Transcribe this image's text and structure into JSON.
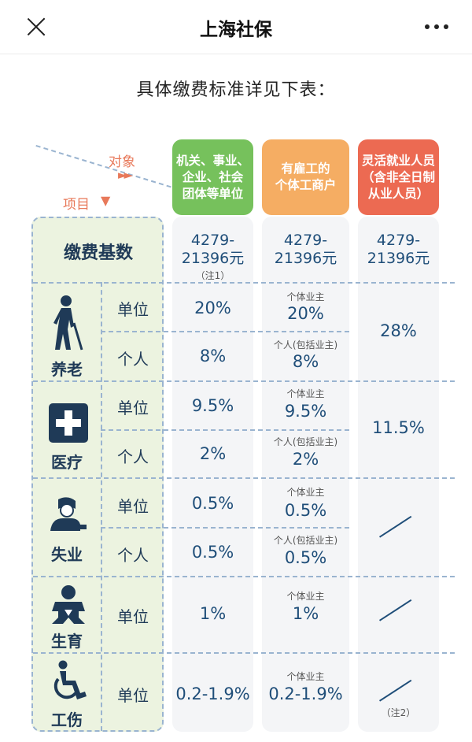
{
  "topbar": {
    "title": "上海社保"
  },
  "intro": "具体缴费标准详见下表：",
  "corner": {
    "object_label": "对象",
    "object_arrow": "►►",
    "item_label": "项目",
    "item_arrow": "▼"
  },
  "columns": [
    {
      "header": "机关、事业、\n企业、社会\n团体等单位",
      "color": "#76c15c"
    },
    {
      "header": "有雇工的\n个体工商户",
      "color": "#f5ad63"
    },
    {
      "header": "灵活就业人员\n（含非全日制\n从业人员）",
      "color": "#ec6a52"
    }
  ],
  "base": {
    "label": "缴费基数",
    "c1": "4279-\n21396元",
    "c1_note": "（注1）",
    "c2": "4279-\n21396元",
    "c3": "4279-\n21396元"
  },
  "sub_unit": "单位",
  "sub_personal": "个人",
  "note_owner": "个体业主",
  "note_personal_owner": "个人(包括业主)",
  "pension": {
    "label": "养老",
    "unit_c1": "20%",
    "unit_c2": "20%",
    "personal_c1": "8%",
    "personal_c2": "8%",
    "c3": "28%",
    "icon": "elderly-person-icon"
  },
  "medical": {
    "label": "医疗",
    "unit_c1": "9.5%",
    "unit_c2": "9.5%",
    "personal_c1": "2%",
    "personal_c2": "2%",
    "c3": "11.5%",
    "icon": "medical-cross-icon"
  },
  "unemployment": {
    "label": "失业",
    "unit_c1": "0.5%",
    "unit_c2": "0.5%",
    "personal_c1": "0.5%",
    "personal_c2": "0.5%",
    "icon": "person-at-desk-icon"
  },
  "maternity": {
    "label": "生育",
    "unit_c1": "1%",
    "unit_c2": "1%",
    "icon": "baby-icon"
  },
  "injury": {
    "label": "工伤",
    "unit_c1": "0.2-1.9%",
    "unit_c2": "0.2-1.9%",
    "c3_note": "（注2）",
    "icon": "wheelchair-icon"
  }
}
